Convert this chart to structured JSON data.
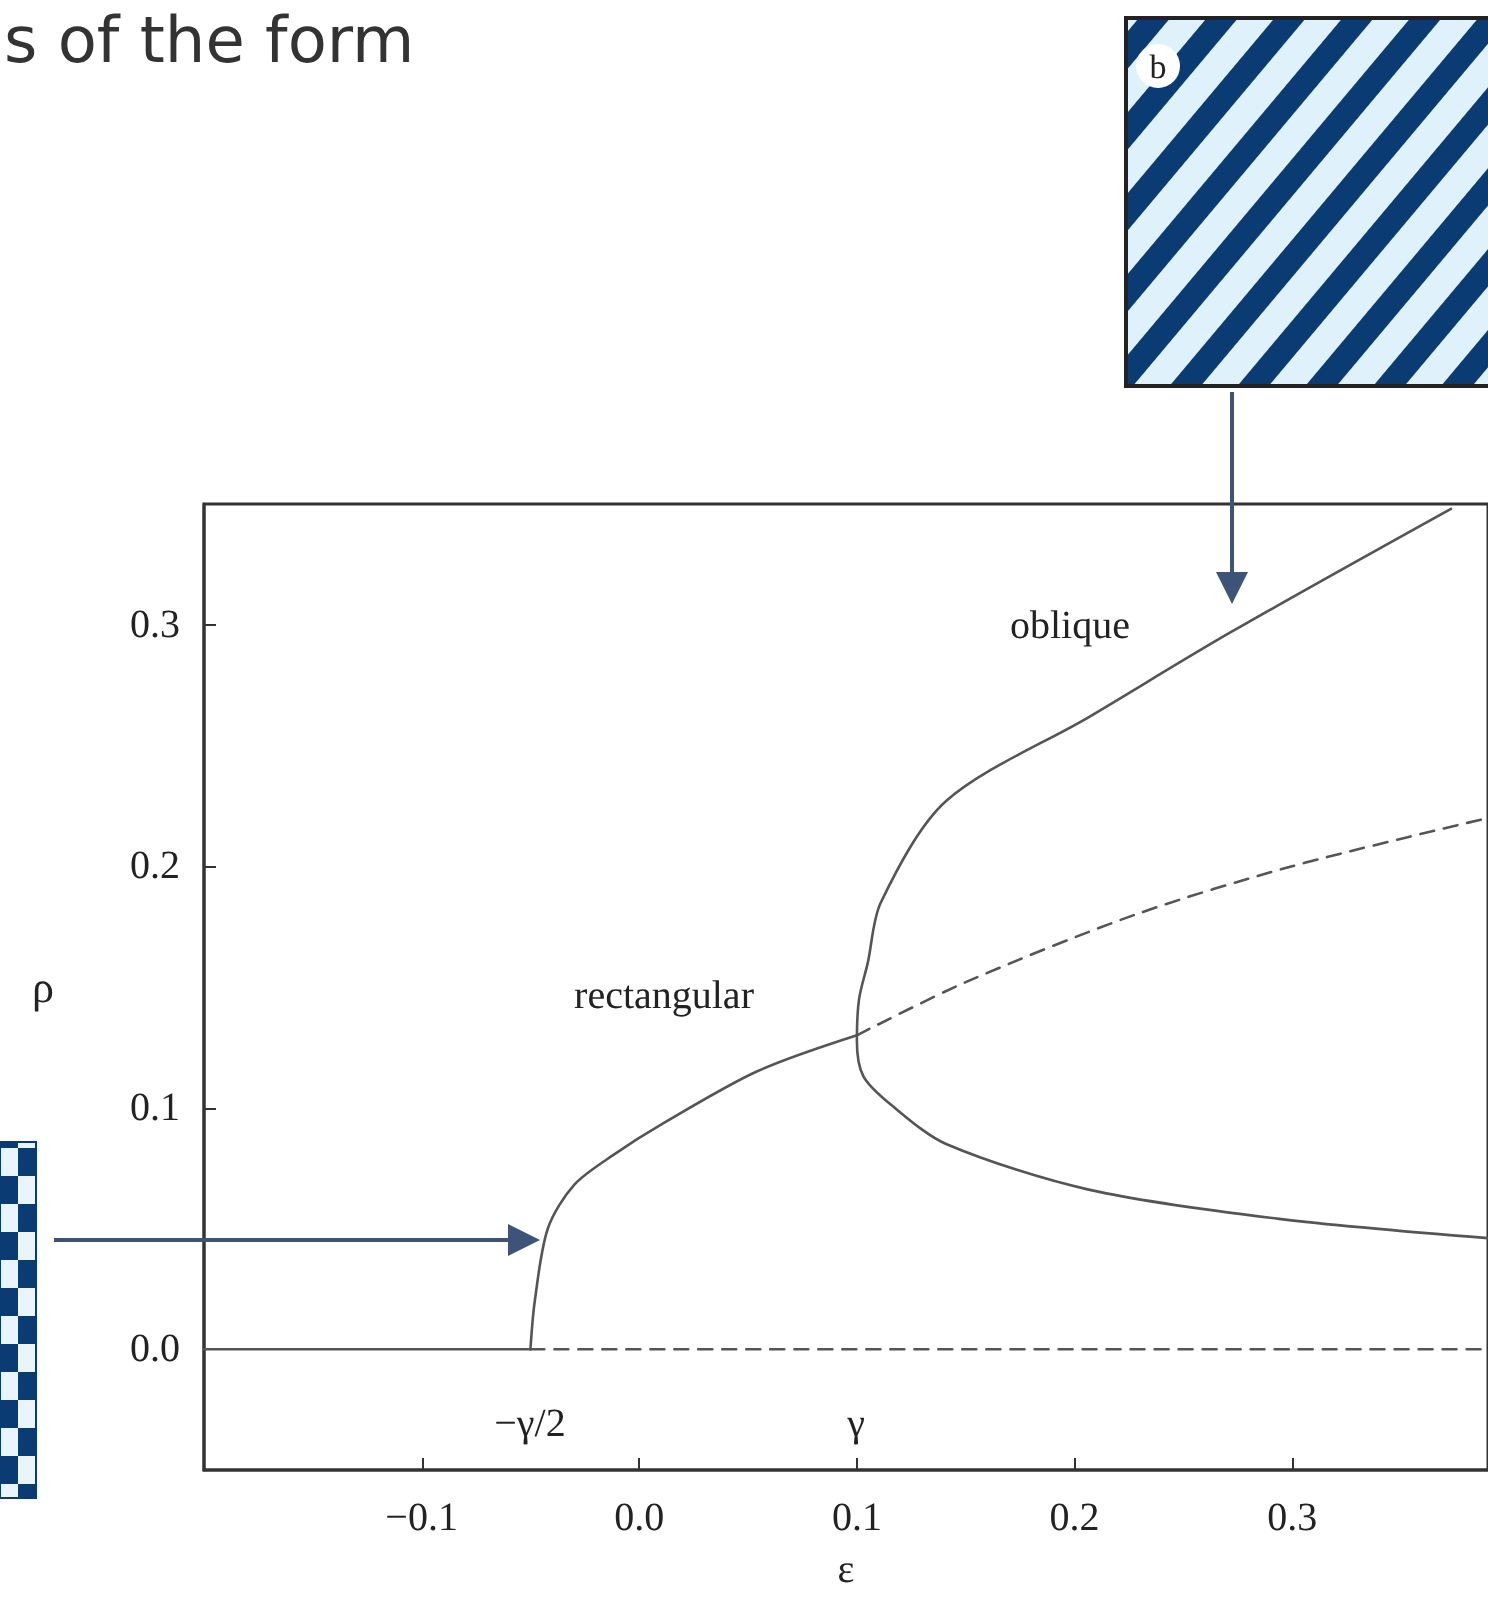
{
  "chart_data": {
    "type": "line",
    "xlabel": "ε",
    "ylabel": "ρ",
    "xlim": [
      -0.2,
      0.39
    ],
    "ylim": [
      -0.05,
      0.35
    ],
    "xticks": [
      {
        "value": -0.1,
        "label": "−0.1"
      },
      {
        "value": 0,
        "label": "0.0"
      },
      {
        "value": 0.1,
        "label": "0.1"
      },
      {
        "value": 0.2,
        "label": "0.2"
      },
      {
        "value": 0.3,
        "label": "0.3"
      }
    ],
    "yticks": [
      {
        "value": 0,
        "label": "0.0"
      },
      {
        "value": 0.1,
        "label": "0.1"
      },
      {
        "value": 0.2,
        "label": "0.2"
      },
      {
        "value": 0.3,
        "label": "0.3"
      }
    ],
    "series": [
      {
        "color": "#555555",
        "line_style": "solid",
        "x": [
          -0.2,
          -0.05
        ],
        "values": [
          0,
          0
        ]
      },
      {
        "color": "#555555",
        "line_style": "dashed",
        "x": [
          -0.05,
          0.39
        ],
        "values": [
          0,
          0
        ]
      },
      {
        "color": "#555555",
        "line_style": "solid",
        "x": [
          -0.05,
          -0.048,
          -0.042,
          -0.03,
          -0.011,
          0.01,
          0.054,
          0.1
        ],
        "values": [
          0,
          0.02,
          0.05,
          0.068,
          0.081,
          0.093,
          0.115,
          0.13
        ]
      },
      {
        "color": "#555555",
        "line_style": "dashed",
        "x": [
          0.1,
          0.15,
          0.228,
          0.3,
          0.39
        ],
        "values": [
          0.13,
          0.152,
          0.18,
          0.2,
          0.22
        ]
      },
      {
        "color": "#555555",
        "line_style": "solid",
        "x": [
          0.39,
          0.294,
          0.207,
          0.141,
          0.116,
          0.103,
          0.1,
          0.101,
          0.105,
          0.111,
          0.141,
          0.207,
          0.272,
          0.373
        ],
        "values": [
          0.046,
          0.054,
          0.066,
          0.085,
          0.101,
          0.113,
          0.128,
          0.145,
          0.16,
          0.185,
          0.227,
          0.262,
          0.297,
          0.348
        ]
      }
    ],
    "annotations": [
      "s of the form",
      "b",
      "oblique",
      "rectangular",
      "−γ/2",
      "γ"
    ],
    "grid": false,
    "marker": "none"
  }
}
